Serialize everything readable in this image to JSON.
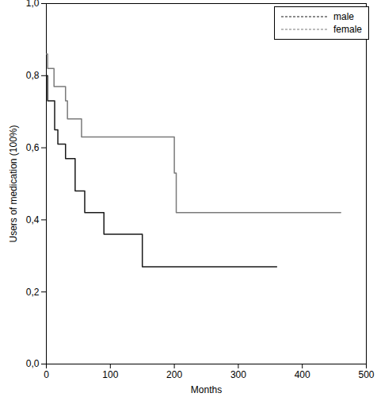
{
  "chart_data": {
    "type": "step",
    "x_label": "Months",
    "y_label": "Users of medication (100%)",
    "xlim": [
      0,
      500
    ],
    "xticks": [
      0,
      100,
      200,
      300,
      400,
      500
    ],
    "ylim": [
      0,
      1
    ],
    "yticks": [
      {
        "value": 0,
        "label": "0,0"
      },
      {
        "value": 0.2,
        "label": "0,2"
      },
      {
        "value": 0.4,
        "label": "0,4"
      },
      {
        "value": 0.6,
        "label": "0,6"
      },
      {
        "value": 0.8,
        "label": "0,8"
      },
      {
        "value": 1,
        "label": "1,0"
      }
    ],
    "legend": "top-right",
    "series": [
      {
        "name": "male",
        "color": "#1a1a1a",
        "line_style": "dashed",
        "x": [
          0,
          2,
          13,
          18,
          30,
          45,
          60,
          90,
          150,
          360
        ],
        "values": [
          0.8,
          0.73,
          0.65,
          0.61,
          0.57,
          0.48,
          0.42,
          0.36,
          0.27,
          0.27
        ]
      },
      {
        "name": "female",
        "color": "#7a7a7a",
        "line_style": "dashed",
        "x": [
          0,
          2,
          12,
          30,
          33,
          55,
          200,
          203,
          460
        ],
        "values": [
          0.86,
          0.82,
          0.77,
          0.73,
          0.68,
          0.63,
          0.53,
          0.42,
          0.42
        ]
      }
    ]
  }
}
